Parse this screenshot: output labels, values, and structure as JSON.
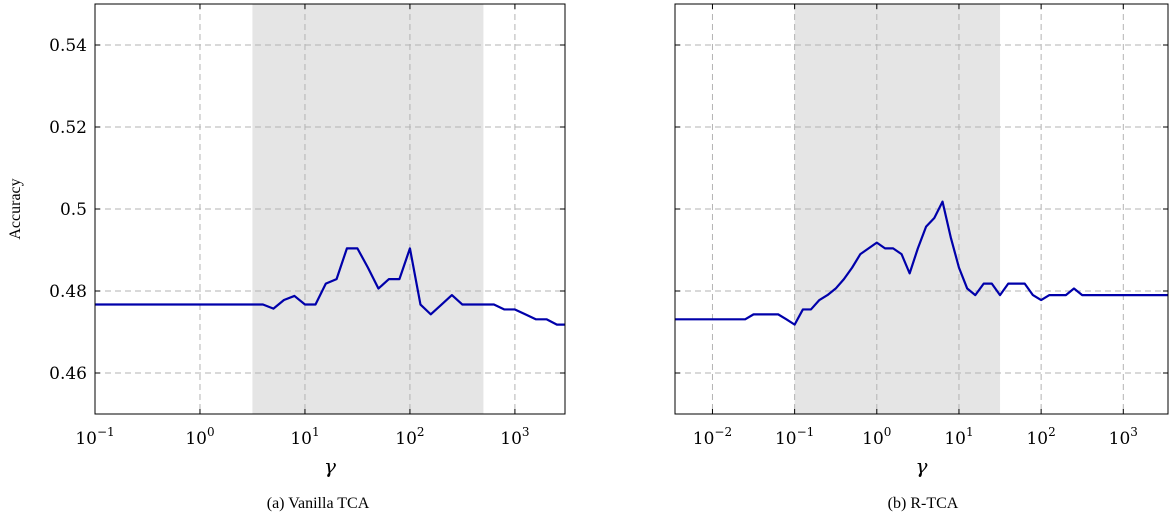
{
  "chart_data": [
    {
      "type": "line",
      "xlabel": "γ",
      "ylabel": "Accuracy",
      "x_scale": "log",
      "xlim": [
        0.1,
        3000
      ],
      "ylim": [
        0.45,
        0.55
      ],
      "x_ticks": [
        {
          "value": 0.1,
          "base": "10",
          "exp": "−1"
        },
        {
          "value": 1,
          "base": "10",
          "exp": "0"
        },
        {
          "value": 10,
          "base": "10",
          "exp": "1"
        },
        {
          "value": 100,
          "base": "10",
          "exp": "2"
        },
        {
          "value": 1000,
          "base": "10",
          "exp": "3"
        }
      ],
      "y_ticks": [
        {
          "value": 0.46,
          "label": "0.46"
        },
        {
          "value": 0.48,
          "label": "0.48"
        },
        {
          "value": 0.5,
          "label": "0.5"
        },
        {
          "value": 0.52,
          "label": "0.52"
        },
        {
          "value": 0.54,
          "label": "0.54"
        }
      ],
      "grid": true,
      "shaded_region": [
        3.16,
        501
      ],
      "series": [
        {
          "color": "#0000aa",
          "points": [
            [
              0.1,
              0.4767
            ],
            [
              0.126,
              0.4767
            ],
            [
              0.158,
              0.4767
            ],
            [
              0.2,
              0.4767
            ],
            [
              0.251,
              0.4767
            ],
            [
              0.316,
              0.4767
            ],
            [
              0.398,
              0.4767
            ],
            [
              0.501,
              0.4767
            ],
            [
              0.631,
              0.4767
            ],
            [
              0.794,
              0.4767
            ],
            [
              1,
              0.4767
            ],
            [
              1.26,
              0.4767
            ],
            [
              1.58,
              0.4767
            ],
            [
              2,
              0.4767
            ],
            [
              2.51,
              0.4767
            ],
            [
              3.16,
              0.4767
            ],
            [
              3.98,
              0.4767
            ],
            [
              5.01,
              0.4757
            ],
            [
              6.31,
              0.4778
            ],
            [
              7.94,
              0.4788
            ],
            [
              10,
              0.4767
            ],
            [
              12.6,
              0.4767
            ],
            [
              15.8,
              0.4818
            ],
            [
              20,
              0.4829
            ],
            [
              25.1,
              0.4904
            ],
            [
              31.6,
              0.4904
            ],
            [
              39.8,
              0.4857
            ],
            [
              50.1,
              0.4806
            ],
            [
              63.1,
              0.4829
            ],
            [
              79.4,
              0.4829
            ],
            [
              100,
              0.4904
            ],
            [
              126,
              0.4767
            ],
            [
              158,
              0.4743
            ],
            [
              200,
              0.4767
            ],
            [
              251,
              0.479
            ],
            [
              316,
              0.4767
            ],
            [
              398,
              0.4767
            ],
            [
              501,
              0.4767
            ],
            [
              631,
              0.4767
            ],
            [
              794,
              0.4755
            ],
            [
              1000,
              0.4755
            ],
            [
              1260,
              0.4743
            ],
            [
              1580,
              0.4731
            ],
            [
              2000,
              0.4731
            ],
            [
              2510,
              0.4718
            ],
            [
              3000,
              0.4718
            ]
          ]
        }
      ],
      "caption": "(a) Vanilla TCA"
    },
    {
      "type": "line",
      "xlabel": "γ",
      "ylabel": "",
      "x_scale": "log",
      "xlim": [
        0.0035,
        3500
      ],
      "ylim": [
        0.45,
        0.55
      ],
      "x_ticks": [
        {
          "value": 0.01,
          "base": "10",
          "exp": "−2"
        },
        {
          "value": 0.1,
          "base": "10",
          "exp": "−1"
        },
        {
          "value": 1,
          "base": "10",
          "exp": "0"
        },
        {
          "value": 10,
          "base": "10",
          "exp": "1"
        },
        {
          "value": 100,
          "base": "10",
          "exp": "2"
        },
        {
          "value": 1000,
          "base": "10",
          "exp": "3"
        }
      ],
      "y_ticks": [
        {
          "value": 0.46,
          "label": ""
        },
        {
          "value": 0.48,
          "label": ""
        },
        {
          "value": 0.5,
          "label": ""
        },
        {
          "value": 0.52,
          "label": ""
        },
        {
          "value": 0.54,
          "label": ""
        }
      ],
      "grid": true,
      "shaded_region": [
        0.1,
        31.6
      ],
      "series": [
        {
          "color": "#0000aa",
          "points": [
            [
              0.0035,
              0.4731
            ],
            [
              0.005,
              0.4731
            ],
            [
              0.01,
              0.4731
            ],
            [
              0.02,
              0.4731
            ],
            [
              0.025,
              0.4731
            ],
            [
              0.0316,
              0.4743
            ],
            [
              0.0398,
              0.4743
            ],
            [
              0.0501,
              0.4743
            ],
            [
              0.0631,
              0.4743
            ],
            [
              0.0794,
              0.4731
            ],
            [
              0.1,
              0.4718
            ],
            [
              0.126,
              0.4755
            ],
            [
              0.158,
              0.4755
            ],
            [
              0.2,
              0.4778
            ],
            [
              0.251,
              0.479
            ],
            [
              0.316,
              0.4806
            ],
            [
              0.398,
              0.4829
            ],
            [
              0.501,
              0.4857
            ],
            [
              0.631,
              0.489
            ],
            [
              0.794,
              0.4904
            ],
            [
              1,
              0.4918
            ],
            [
              1.26,
              0.4904
            ],
            [
              1.58,
              0.4904
            ],
            [
              2,
              0.489
            ],
            [
              2.51,
              0.4843
            ],
            [
              3.16,
              0.4904
            ],
            [
              3.98,
              0.4957
            ],
            [
              5.01,
              0.4978
            ],
            [
              6.31,
              0.5018
            ],
            [
              7.94,
              0.4931
            ],
            [
              10,
              0.4857
            ],
            [
              12.6,
              0.4806
            ],
            [
              15.8,
              0.479
            ],
            [
              20,
              0.4818
            ],
            [
              25.1,
              0.4818
            ],
            [
              31.6,
              0.479
            ],
            [
              39.8,
              0.4818
            ],
            [
              50.1,
              0.4818
            ],
            [
              63.1,
              0.4818
            ],
            [
              79.4,
              0.479
            ],
            [
              100,
              0.4778
            ],
            [
              126,
              0.479
            ],
            [
              158,
              0.479
            ],
            [
              200,
              0.479
            ],
            [
              251,
              0.4806
            ],
            [
              316,
              0.479
            ],
            [
              398,
              0.479
            ],
            [
              501,
              0.479
            ],
            [
              631,
              0.479
            ],
            [
              794,
              0.479
            ],
            [
              1000,
              0.479
            ],
            [
              1580,
              0.479
            ],
            [
              3500,
              0.479
            ]
          ]
        }
      ],
      "caption": "(b) R-TCA"
    }
  ]
}
